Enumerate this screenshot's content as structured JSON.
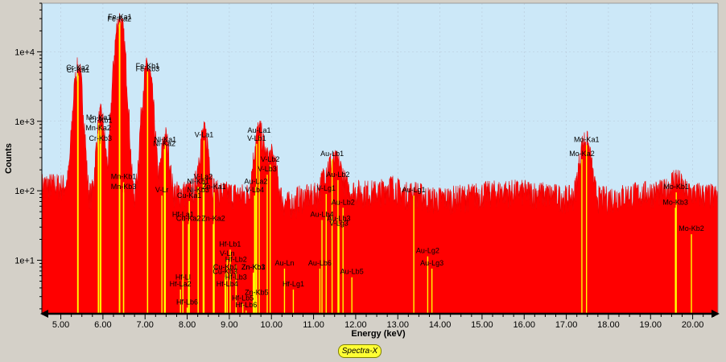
{
  "chart_data": {
    "type": "area",
    "title": "",
    "xlabel": "Energy (keV)",
    "ylabel": "Counts",
    "xlim": [
      4.55,
      20.6
    ],
    "ylim": [
      1.7,
      50000
    ],
    "yscale": "log",
    "x_ticks": [
      "5.00",
      "6.00",
      "7.00",
      "8.00",
      "9.00",
      "10.00",
      "11.00",
      "12.00",
      "13.00",
      "14.00",
      "15.00",
      "16.00",
      "17.00",
      "18.00",
      "19.00",
      "20.00"
    ],
    "y_ticks": [
      "1e+1",
      "1e+2",
      "1e+3",
      "1e+4"
    ],
    "y_tick_values": [
      10,
      100,
      1000,
      10000
    ],
    "background": 90,
    "peaks": [
      {
        "x": 5.41,
        "y": 5800,
        "w": 0.075
      },
      {
        "x": 5.95,
        "y": 1150,
        "w": 0.07
      },
      {
        "x": 6.4,
        "y": 30000,
        "w": 0.085
      },
      {
        "x": 7.06,
        "y": 6000,
        "w": 0.085
      },
      {
        "x": 7.48,
        "y": 520,
        "w": 0.07
      },
      {
        "x": 8.4,
        "y": 600,
        "w": 0.085
      },
      {
        "x": 9.71,
        "y": 680,
        "w": 0.09
      },
      {
        "x": 10.0,
        "y": 260,
        "w": 0.1
      },
      {
        "x": 11.3,
        "y": 60,
        "w": 0.1
      },
      {
        "x": 11.45,
        "y": 120,
        "w": 0.12
      },
      {
        "x": 11.6,
        "y": 90,
        "w": 0.1
      },
      {
        "x": 12.85,
        "y": 30,
        "w": 0.15
      },
      {
        "x": 13.4,
        "y": 15,
        "w": 0.15
      },
      {
        "x": 17.45,
        "y": 480,
        "w": 0.1
      },
      {
        "x": 19.6,
        "y": 60,
        "w": 0.1
      }
    ],
    "markers": [
      {
        "label": "Cr-Ka1",
        "x": 5.41,
        "y": 4800
      },
      {
        "label": "Cr-Ka2",
        "x": 5.4,
        "y": 5200
      },
      {
        "label": "Mn-Ka1",
        "x": 5.9,
        "y": 1000
      },
      {
        "label": "Cr-Kb1",
        "x": 5.95,
        "y": 900
      },
      {
        "label": "Mn-Ka2",
        "x": 5.89,
        "y": 700
      },
      {
        "label": "Cr-Kb3",
        "x": 5.94,
        "y": 500
      },
      {
        "label": "Fe-Ka1",
        "x": 6.4,
        "y": 28000
      },
      {
        "label": "Fe-Ka2",
        "x": 6.39,
        "y": 26000
      },
      {
        "label": "Mn-Kb1",
        "x": 6.49,
        "y": 140
      },
      {
        "label": "Mn-Kb3",
        "x": 6.49,
        "y": 100
      },
      {
        "label": "Fe-Kb1",
        "x": 7.06,
        "y": 5500
      },
      {
        "label": "Fe-Kb3",
        "x": 7.06,
        "y": 5000
      },
      {
        "label": "Ni-Ka1",
        "x": 7.48,
        "y": 480
      },
      {
        "label": "Ni-Ka2",
        "x": 7.46,
        "y": 420
      },
      {
        "label": "V-Lr",
        "x": 7.4,
        "y": 90
      },
      {
        "label": "Hf-Ll",
        "x": 7.9,
        "y": 5
      },
      {
        "label": "Hf-La1",
        "x": 7.9,
        "y": 40
      },
      {
        "label": "Cu-Ka1",
        "x": 8.05,
        "y": 75
      },
      {
        "label": "Cu-Ka2",
        "x": 8.03,
        "y": 35
      },
      {
        "label": "Hf-La2",
        "x": 7.84,
        "y": 4
      },
      {
        "label": "Hf-Lb6",
        "x": 8.0,
        "y": 2.2
      },
      {
        "label": "V-La1",
        "x": 8.4,
        "y": 560
      },
      {
        "label": "V-La2",
        "x": 8.38,
        "y": 140
      },
      {
        "label": "Ni-Kb1",
        "x": 8.26,
        "y": 120
      },
      {
        "label": "Ni-Kb3",
        "x": 8.26,
        "y": 90
      },
      {
        "label": "Zn-Ka1",
        "x": 8.64,
        "y": 100
      },
      {
        "label": "Zn-Ka2",
        "x": 8.62,
        "y": 35
      },
      {
        "label": "Hf-Lb1",
        "x": 9.02,
        "y": 15
      },
      {
        "label": "V-Ln",
        "x": 8.95,
        "y": 11
      },
      {
        "label": "Cu-Kb1",
        "x": 8.91,
        "y": 7
      },
      {
        "label": "Cu-Kb3",
        "x": 8.9,
        "y": 6
      },
      {
        "label": "Hf-Lb2",
        "x": 9.16,
        "y": 9
      },
      {
        "label": "Hf-Lb3",
        "x": 9.16,
        "y": 5
      },
      {
        "label": "Hf-Lb4",
        "x": 8.95,
        "y": 4
      },
      {
        "label": "Zn-Kb1",
        "x": 9.57,
        "y": 7
      },
      {
        "label": "Zn-Kb3",
        "x": 9.57,
        "y": 7
      },
      {
        "label": "Zn-Kb5",
        "x": 9.65,
        "y": 3
      },
      {
        "label": "Hf-Lb5",
        "x": 9.32,
        "y": 2.5
      },
      {
        "label": "Hf-Lb6",
        "x": 9.4,
        "y": 2
      },
      {
        "label": "Au-La1",
        "x": 9.71,
        "y": 650
      },
      {
        "label": "V-Lb1",
        "x": 9.65,
        "y": 500
      },
      {
        "label": "V-Lb2",
        "x": 9.97,
        "y": 250
      },
      {
        "label": "V-Lb3",
        "x": 9.9,
        "y": 180
      },
      {
        "label": "Au-La2",
        "x": 9.63,
        "y": 120
      },
      {
        "label": "V-Lb4",
        "x": 9.6,
        "y": 90
      },
      {
        "label": "Au-Ln",
        "x": 10.31,
        "y": 8
      },
      {
        "label": "Hf-Lg1",
        "x": 10.52,
        "y": 4
      },
      {
        "label": "Au-Lb1",
        "x": 11.44,
        "y": 300
      },
      {
        "label": "Au-Lb2",
        "x": 11.58,
        "y": 150
      },
      {
        "label": "V-Lg1",
        "x": 11.3,
        "y": 95
      },
      {
        "label": "Au-Lb4",
        "x": 11.2,
        "y": 40
      },
      {
        "label": "Au-Lb3",
        "x": 11.6,
        "y": 35
      },
      {
        "label": "Au-Lb2",
        "x": 11.7,
        "y": 60
      },
      {
        "label": "V-Lg3",
        "x": 11.6,
        "y": 30
      },
      {
        "label": "Au-Lb6",
        "x": 11.15,
        "y": 8
      },
      {
        "label": "Au-Lb5",
        "x": 11.91,
        "y": 6
      },
      {
        "label": "Au-Lg1",
        "x": 13.38,
        "y": 90
      },
      {
        "label": "Au-Lg2",
        "x": 13.71,
        "y": 12
      },
      {
        "label": "Au-Lg3",
        "x": 13.81,
        "y": 8
      },
      {
        "label": "Mo-Ka1",
        "x": 17.48,
        "y": 480
      },
      {
        "label": "Mo-Ka2",
        "x": 17.37,
        "y": 300
      },
      {
        "label": "Mo-Kb1",
        "x": 19.61,
        "y": 100
      },
      {
        "label": "Mo-Kb3",
        "x": 19.59,
        "y": 60
      },
      {
        "label": "Mo-Kb2",
        "x": 19.97,
        "y": 25
      }
    ]
  },
  "legend": {
    "label": "Spectra-X"
  }
}
